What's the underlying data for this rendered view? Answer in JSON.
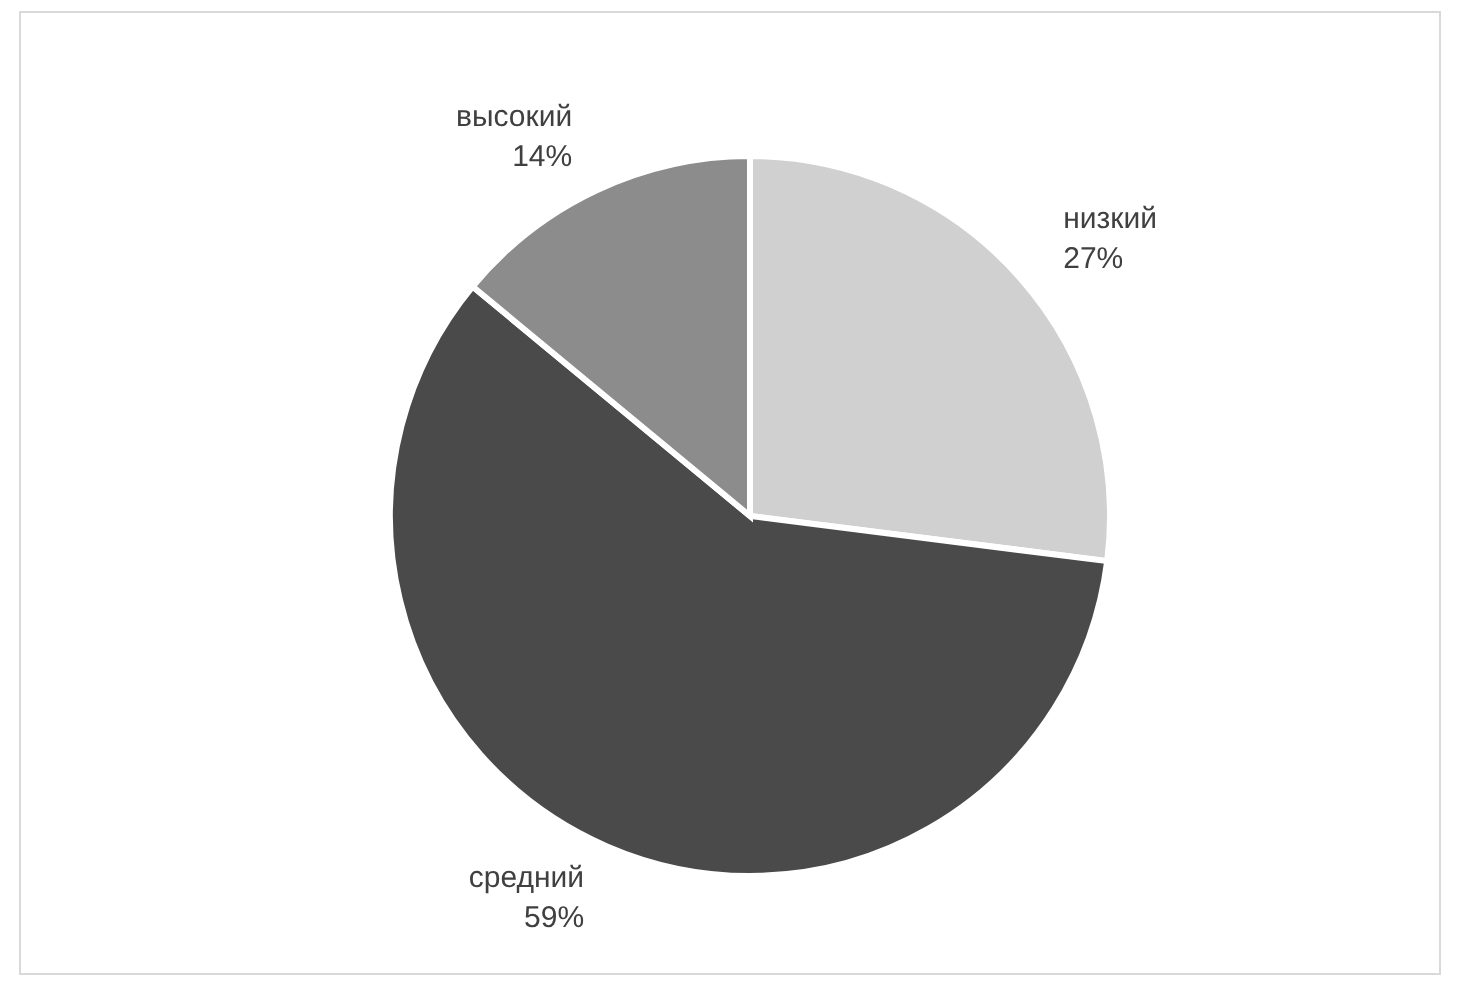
{
  "chart_data": {
    "type": "pie",
    "categories": [
      "низкий",
      "средний",
      "высокий"
    ],
    "values": [
      27,
      59,
      14
    ],
    "colors": [
      "#d0d0d0",
      "#4a4a4a",
      "#8c8c8c"
    ],
    "value_labels": [
      "27%",
      "59%",
      "14%"
    ]
  }
}
